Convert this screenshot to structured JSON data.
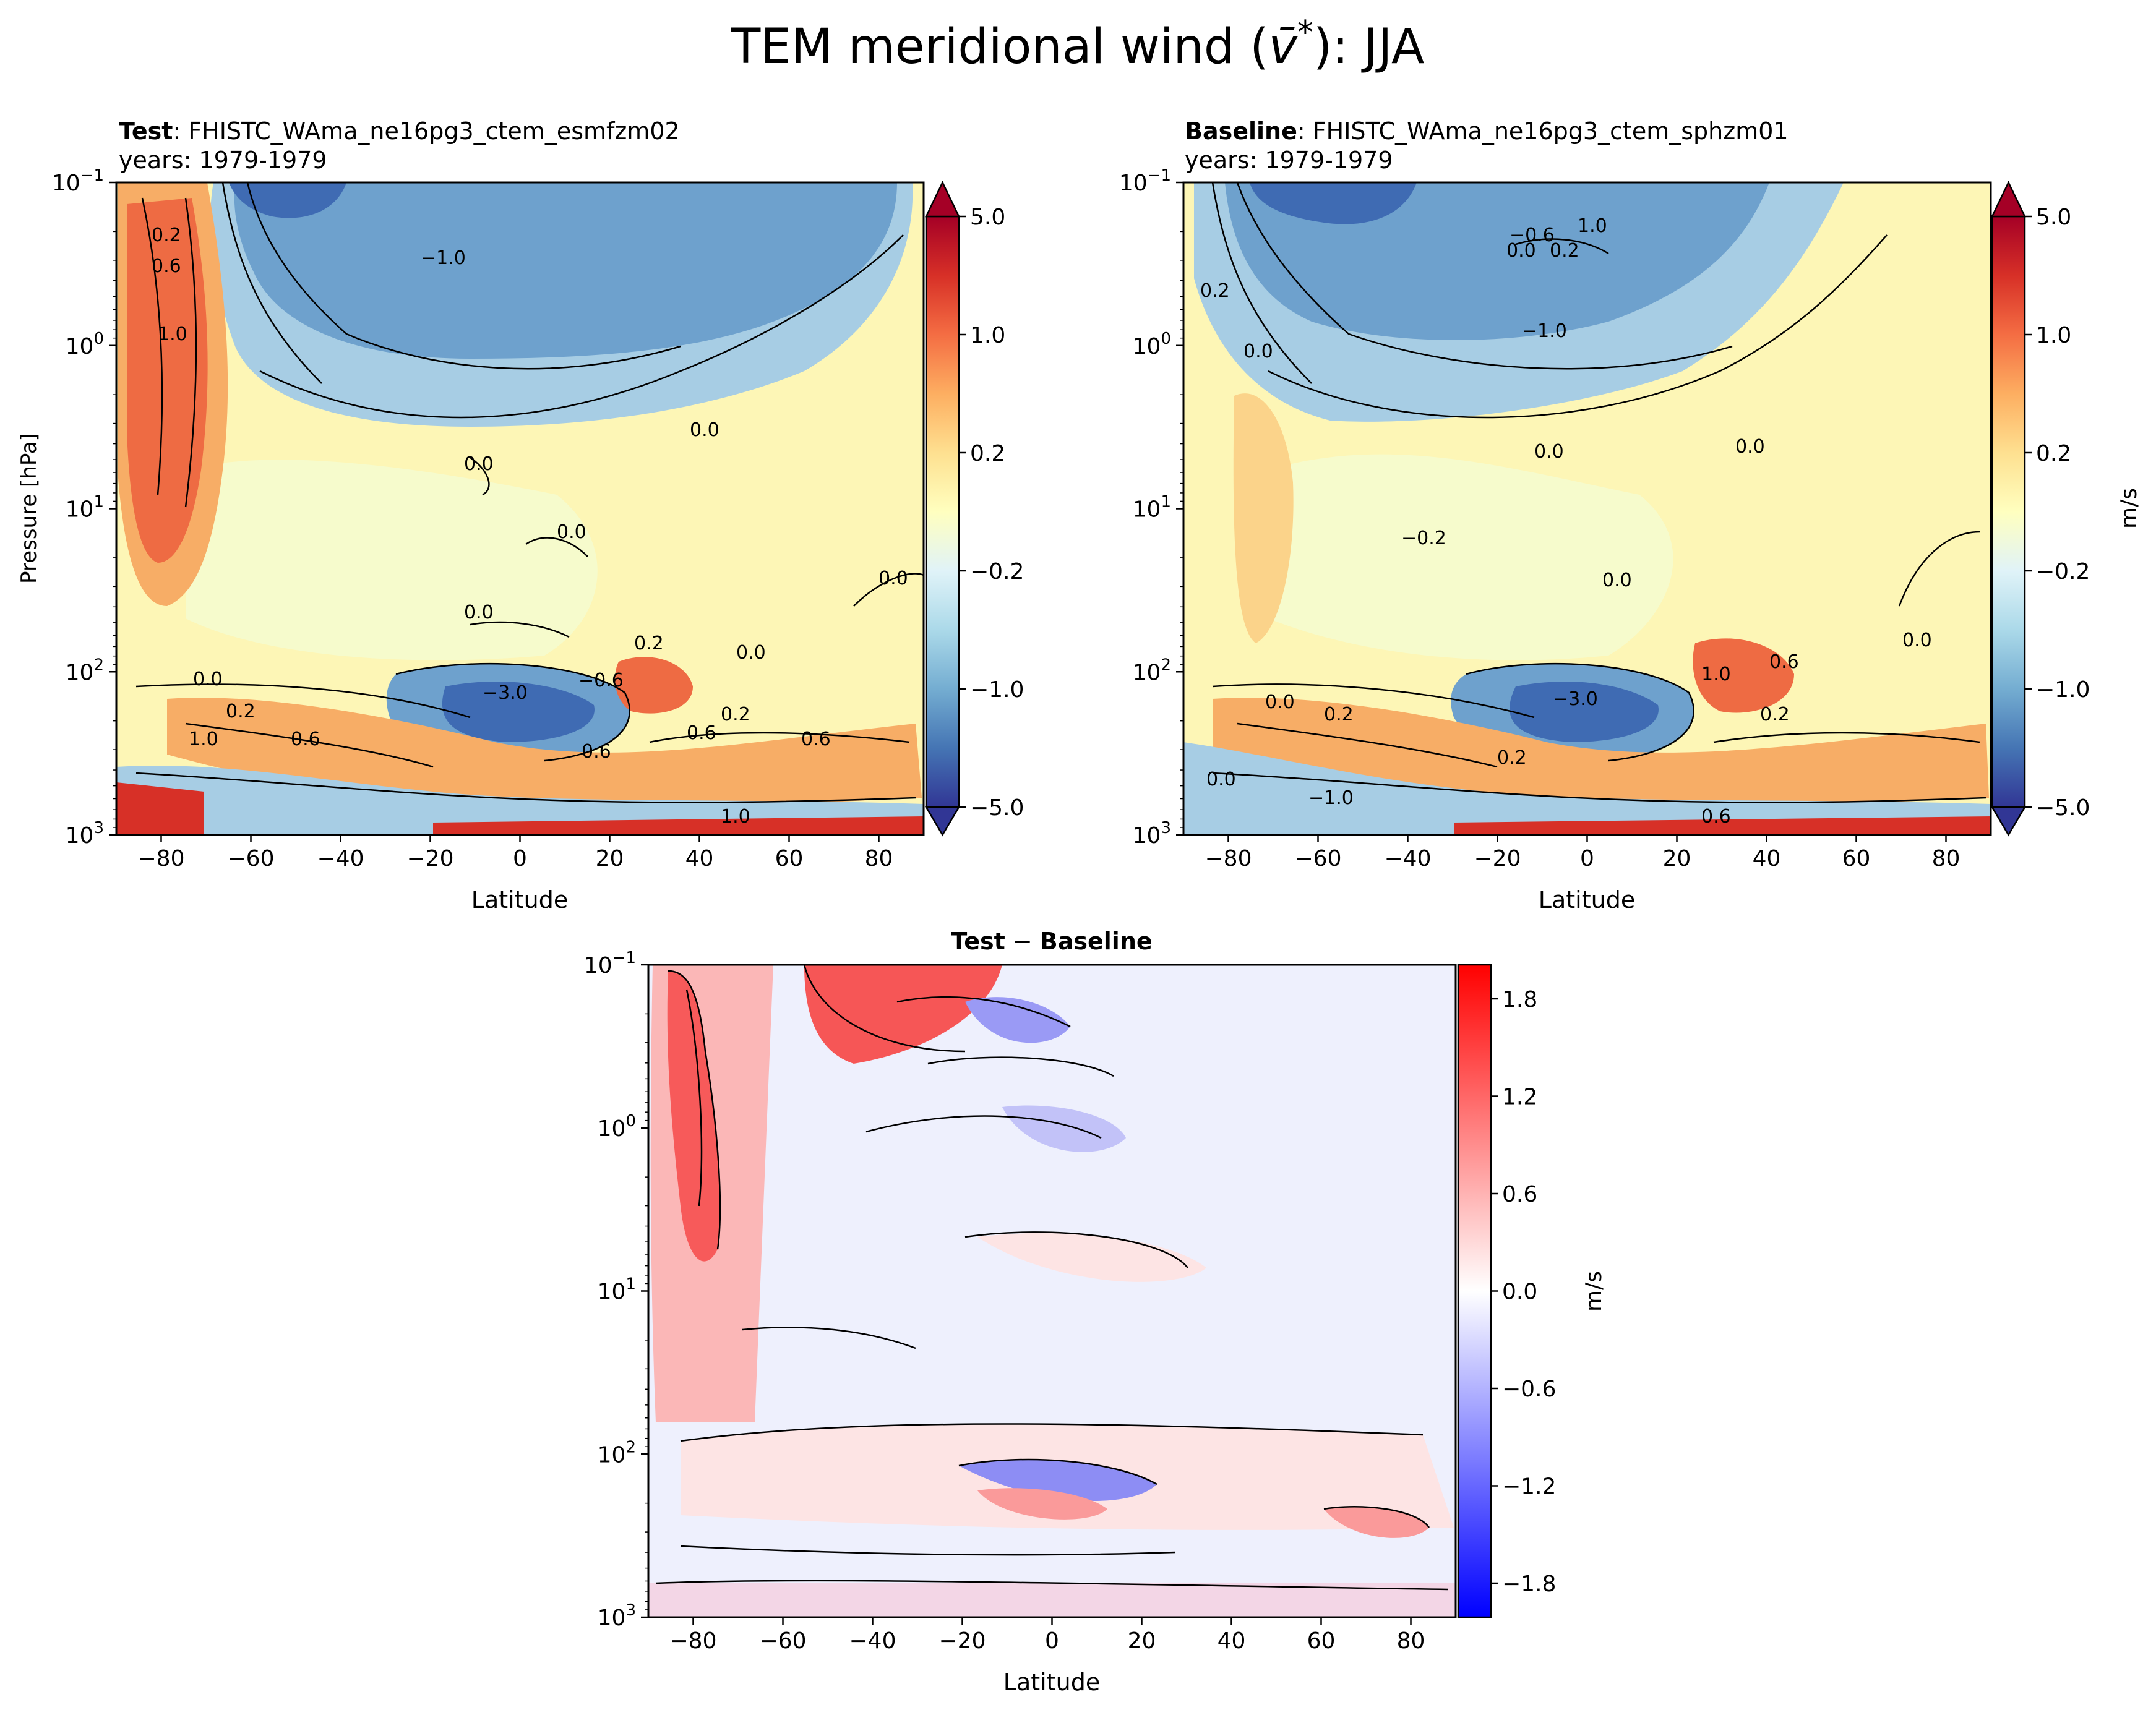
{
  "figure": {
    "title_prefix": "TEM meridional wind (",
    "title_symbol": "v̄",
    "title_sup": "*",
    "title_suffix": "): JJA"
  },
  "chart_data": [
    {
      "type": "heatmap",
      "id": "test",
      "title_bold": "Test",
      "title_rest": ": FHISTC_WAma_ne16pg3_ctem_esmfzm02",
      "subtitle": "years: 1979-1979",
      "xlabel": "Latitude",
      "ylabel": "Pressure [hPa]",
      "xlim": [
        -90,
        90
      ],
      "ylim_hPa": [
        1000,
        0.1
      ],
      "y_scale": "log",
      "x_ticks": [
        "−80",
        "−60",
        "−40",
        "−20",
        "0",
        "20",
        "40",
        "60",
        "80"
      ],
      "y_ticks": [
        {
          "base": "10",
          "exp": "−1"
        },
        {
          "base": "10",
          "exp": "0"
        },
        {
          "base": "10",
          "exp": "1"
        },
        {
          "base": "10",
          "exp": "2"
        },
        {
          "base": "10",
          "exp": "3"
        }
      ],
      "colorbar": {
        "cmap": "RdYlBu_r",
        "levels": [
          -5.0,
          -1.0,
          -0.2,
          0.2,
          1.0,
          5.0
        ],
        "tick_labels": [
          "5.0",
          "1.0",
          "0.2",
          "−0.2",
          "−1.0",
          "−5.0"
        ],
        "extend": "both",
        "units": ""
      },
      "contour_labels": [
        "0.2",
        "0.6",
        "1.0",
        "−1.0",
        "0.0",
        "0.0",
        "0.0",
        "0.0",
        "0.0",
        "0.2",
        "0.0",
        "0.0",
        "0.2",
        "−3.0",
        "−0.6",
        "1.0",
        "0.6",
        "0.6",
        "0.2",
        "0.6",
        "0.6",
        "1.0"
      ]
    },
    {
      "type": "heatmap",
      "id": "baseline",
      "title_bold": "Baseline",
      "title_rest": ": FHISTC_WAma_ne16pg3_ctem_sphzm01",
      "subtitle": "years: 1979-1979",
      "xlabel": "Latitude",
      "ylabel": "",
      "xlim": [
        -90,
        90
      ],
      "ylim_hPa": [
        1000,
        0.1
      ],
      "y_scale": "log",
      "x_ticks": [
        "−80",
        "−60",
        "−40",
        "−20",
        "0",
        "20",
        "40",
        "60",
        "80"
      ],
      "y_ticks": [
        {
          "base": "10",
          "exp": "−1"
        },
        {
          "base": "10",
          "exp": "0"
        },
        {
          "base": "10",
          "exp": "1"
        },
        {
          "base": "10",
          "exp": "2"
        },
        {
          "base": "10",
          "exp": "3"
        }
      ],
      "colorbar": {
        "cmap": "RdYlBu_r",
        "levels": [
          -5.0,
          -1.0,
          -0.2,
          0.2,
          1.0,
          5.0
        ],
        "tick_labels": [
          "5.0",
          "1.0",
          "0.2",
          "−0.2",
          "−1.0",
          "−5.0"
        ],
        "extend": "both",
        "units": "m/s"
      },
      "contour_labels": [
        "−0.6",
        "1.0",
        "0.0",
        "0.2",
        "0.2",
        "−1.0",
        "0.0",
        "0.0",
        "0.0",
        "−0.2",
        "0.0",
        "0.0",
        "0.0",
        "0.2",
        "1.0",
        "0.6",
        "−3.0",
        "0.2",
        "0.0",
        "0.2",
        "−1.0",
        "0.6"
      ]
    },
    {
      "type": "heatmap",
      "id": "diff",
      "title_bold": "Test",
      "title_minus": " − ",
      "title_bold2": "Baseline",
      "xlabel": "Latitude",
      "ylabel": "",
      "xlim": [
        -90,
        90
      ],
      "ylim_hPa": [
        1000,
        0.1
      ],
      "y_scale": "log",
      "x_ticks": [
        "−80",
        "−60",
        "−40",
        "−20",
        "0",
        "20",
        "40",
        "60",
        "80"
      ],
      "y_ticks": [
        {
          "base": "10",
          "exp": "−1"
        },
        {
          "base": "10",
          "exp": "0"
        },
        {
          "base": "10",
          "exp": "1"
        },
        {
          "base": "10",
          "exp": "2"
        },
        {
          "base": "10",
          "exp": "3"
        }
      ],
      "colorbar": {
        "cmap": "bwr",
        "levels": [
          -1.8,
          -1.2,
          -0.6,
          0.0,
          0.6,
          1.2,
          1.8
        ],
        "tick_labels": [
          "1.8",
          "1.2",
          "0.6",
          "0.0",
          "−0.6",
          "−1.2",
          "−1.8"
        ],
        "units": "m/s"
      }
    }
  ]
}
